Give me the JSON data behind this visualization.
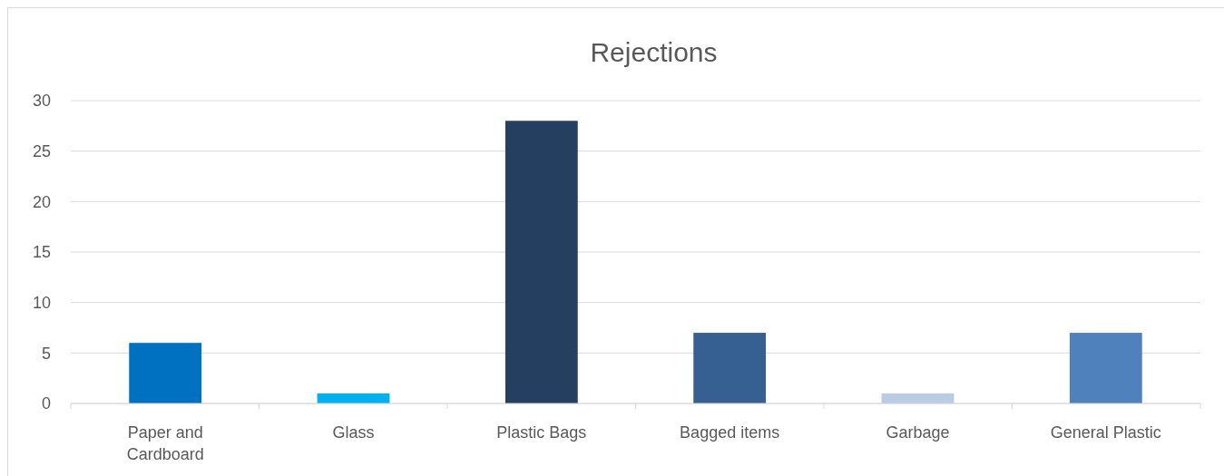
{
  "chart_data": {
    "type": "bar",
    "title": "Rejections",
    "categories": [
      "Paper and Cardboard",
      "Glass",
      "Plastic Bags",
      "Bagged items",
      "Garbage",
      "General Plastic"
    ],
    "values": [
      6,
      1,
      28,
      7,
      1,
      7
    ],
    "colors": [
      "#0070c0",
      "#00b0f0",
      "#243f60",
      "#366092",
      "#b8cce4",
      "#4f81bd"
    ],
    "ylim": [
      0,
      30
    ],
    "yticks": [
      0,
      5,
      10,
      15,
      20,
      25,
      30
    ],
    "grid": "y"
  }
}
